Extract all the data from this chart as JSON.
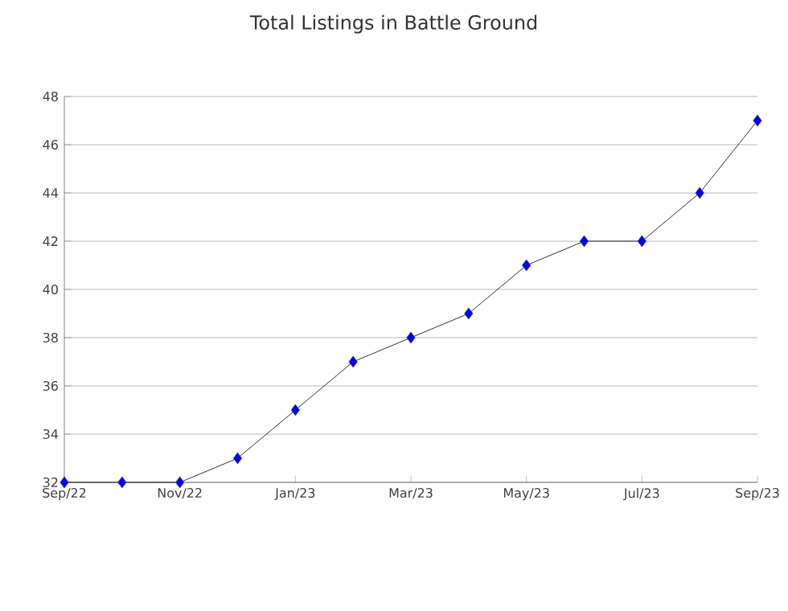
{
  "chart_data": {
    "type": "line",
    "title": "Total Listings in Battle Ground",
    "categories": [
      "Sep/22",
      null,
      "Nov/22",
      null,
      "Jan/23",
      null,
      "Mar/23",
      null,
      "May/23",
      null,
      "Jul/23",
      null,
      "Sep/23"
    ],
    "series": [
      {
        "color": "#0000ff",
        "values": [
          32,
          32,
          32,
          33,
          35,
          37,
          38,
          39,
          41,
          42,
          42,
          44,
          47
        ]
      }
    ],
    "ylim": [
      32,
      48
    ],
    "yticks": [
      32,
      34,
      36,
      38,
      40,
      42,
      44,
      46,
      48
    ],
    "grid": "y",
    "marker": "diamond",
    "line_style": "solid"
  }
}
